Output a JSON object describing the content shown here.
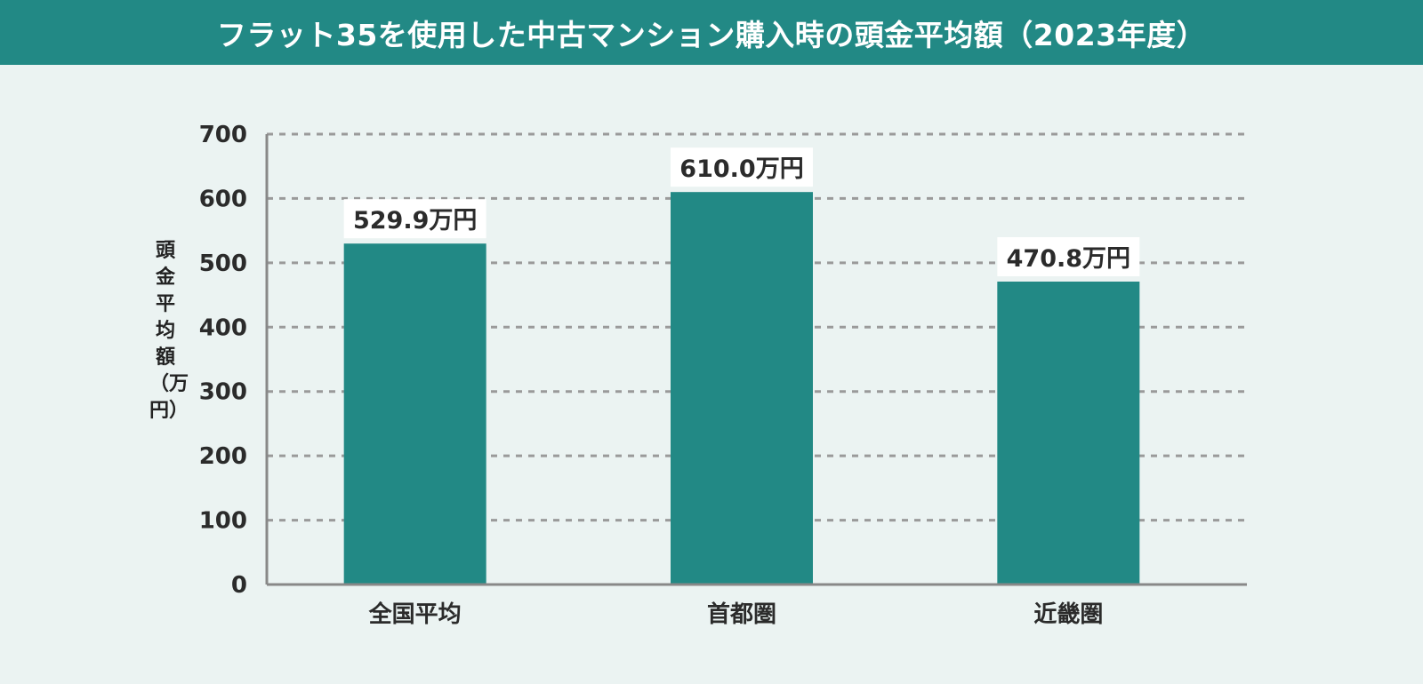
{
  "header": {
    "title": "フラット35を使用した中古マンション購入時の頭金平均額（2023年度）"
  },
  "colors": {
    "header_bg": "#228985",
    "bar": "#228985",
    "background": "#ebf3f2",
    "grid": "#9a9a9a",
    "axis": "#888888",
    "text": "#2b2b2b"
  },
  "chart_data": {
    "type": "bar",
    "categories": [
      "全国平均",
      "首都圏",
      "近畿圏"
    ],
    "values": [
      529.9,
      610.0,
      470.8
    ],
    "data_labels": [
      "529.9万円",
      "610.0万円",
      "470.8万円"
    ],
    "title": "フラット35を使用した中古マンション購入時の頭金平均額（2023年度）",
    "xlabel": "",
    "ylabel": "頭金平均額（万円）",
    "ylim": [
      0,
      700
    ],
    "yticks": [
      0,
      100,
      200,
      300,
      400,
      500,
      600,
      700
    ],
    "grid": true,
    "legend": "none"
  }
}
